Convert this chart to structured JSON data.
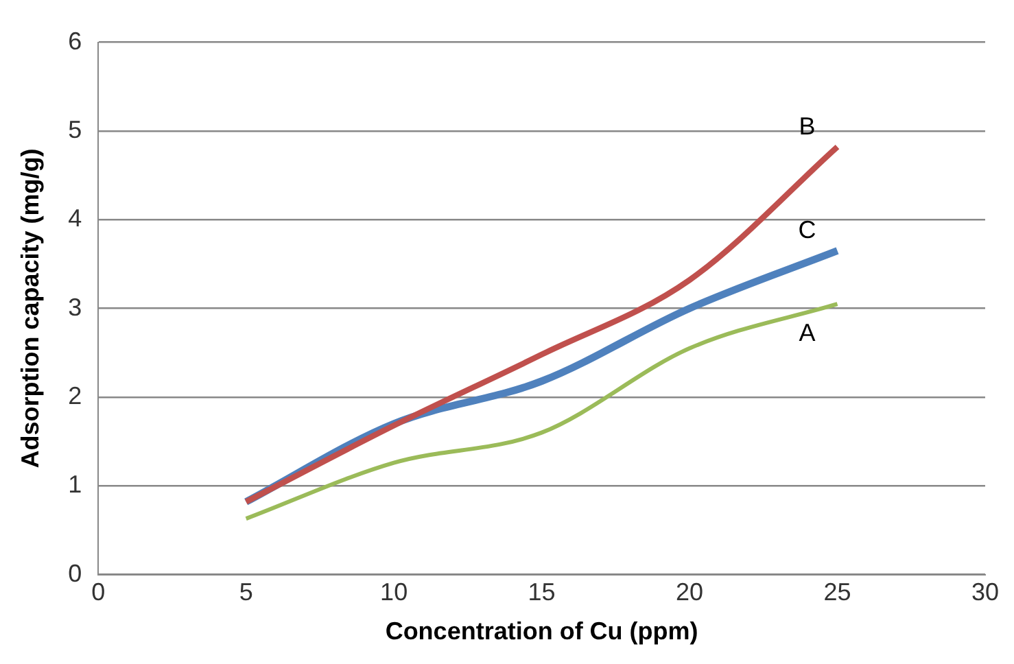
{
  "chart_data": {
    "type": "line",
    "xlabel": "Concentration of Cu (ppm)",
    "ylabel": "Adsorption capacity (mg/g)",
    "x": [
      5,
      10,
      15,
      20,
      25
    ],
    "series": [
      {
        "name": "A",
        "color": "#9bbb59",
        "values": [
          0.63,
          1.26,
          1.6,
          2.55,
          3.05
        ]
      },
      {
        "name": "B",
        "color": "#c0504d",
        "values": [
          0.82,
          1.68,
          2.48,
          3.32,
          4.82
        ]
      },
      {
        "name": "C",
        "color": "#4f81bd",
        "values": [
          0.82,
          1.7,
          2.18,
          3.0,
          3.65
        ]
      }
    ],
    "xlim": [
      0,
      30
    ],
    "xticks": [
      0,
      5,
      10,
      15,
      20,
      25,
      30
    ],
    "ylim": [
      0,
      6
    ],
    "yticks": [
      0,
      1,
      2,
      3,
      4,
      5,
      6
    ],
    "grid": "y",
    "legend": false,
    "marker": "none",
    "line_style": "solid"
  }
}
